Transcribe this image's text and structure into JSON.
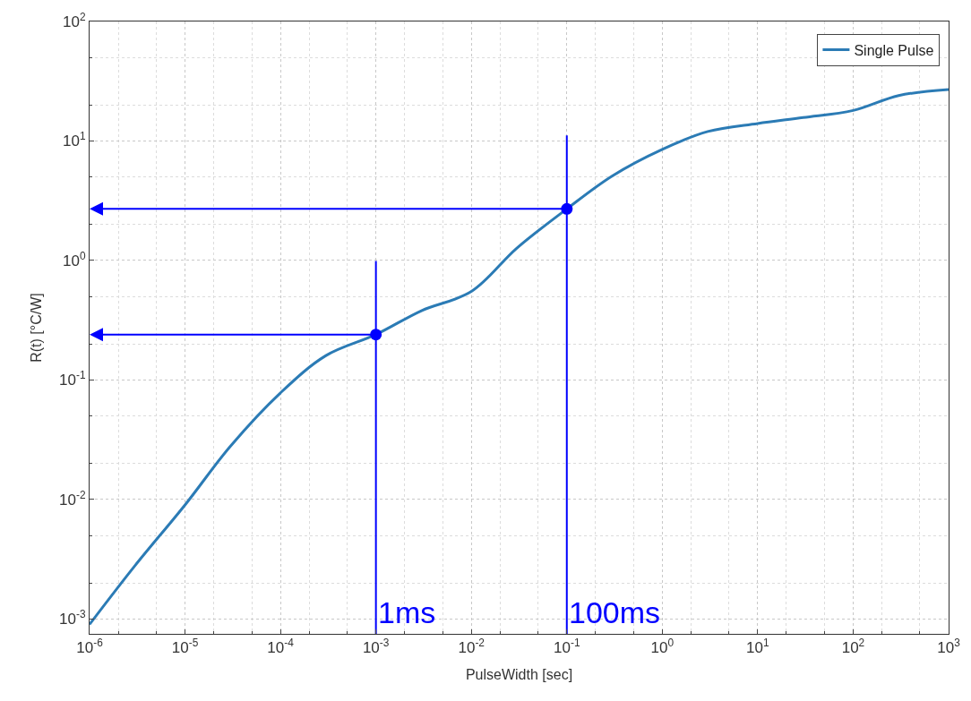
{
  "chart_data": {
    "type": "line",
    "xlabel": "PulseWidth [sec]",
    "ylabel": "R(t) [°C/W]",
    "log": "xy",
    "grid": true,
    "legend": "top right",
    "xlim": [
      1e-06,
      1000
    ],
    "ylim": [
      0.00075,
      100
    ],
    "xticks": [
      {
        "value": 1e-06,
        "label": "10$^{-6}$"
      },
      {
        "value": 1e-05,
        "label": "10$^{-5}$"
      },
      {
        "value": 0.0001,
        "label": "10$^{-4}$"
      },
      {
        "value": 0.001,
        "label": "10$^{-3}$"
      },
      {
        "value": 0.01,
        "label": "10$^{-2}$"
      },
      {
        "value": 0.1,
        "label": "10$^{-1}$"
      },
      {
        "value": 1,
        "label": "10$^{0}$"
      },
      {
        "value": 10,
        "label": "10$^{1}$"
      },
      {
        "value": 100,
        "label": "10$^{2}$"
      },
      {
        "value": 1000,
        "label": "10$^{3}$"
      }
    ],
    "yticks": [
      {
        "value": 0.001,
        "label": "10$^{-3}$"
      },
      {
        "value": 0.01,
        "label": "10$^{-2}$"
      },
      {
        "value": 0.1,
        "label": "10$^{-1}$"
      },
      {
        "value": 1,
        "label": "10$^{0}$"
      },
      {
        "value": 10,
        "label": "10$^{1}$"
      },
      {
        "value": 100,
        "label": "10$^{2}$"
      }
    ],
    "series": [
      {
        "name": "Single Pulse",
        "color": "#2b7bb5",
        "marker": "none",
        "x": [
          1e-06,
          3e-06,
          1e-05,
          3e-05,
          0.0001,
          0.0003,
          0.001,
          0.003,
          0.01,
          0.03,
          0.1,
          0.3,
          1,
          3,
          10,
          30,
          100,
          300,
          1000
        ],
        "values": [
          0.0009,
          0.0028,
          0.009,
          0.028,
          0.078,
          0.16,
          0.24,
          0.38,
          0.55,
          1.27,
          2.7,
          5.1,
          8.5,
          12,
          14,
          15.7,
          18,
          24,
          27
        ]
      },
      {
        "type": "scatter",
        "color": "#0000ff",
        "marker": "circle",
        "x": [
          0.001,
          0.1
        ],
        "values": [
          0.24,
          2.7
        ]
      }
    ],
    "ref_lines": [
      {
        "axis": "x",
        "value": 0.001,
        "label": "1ms",
        "color": "#0000ff"
      },
      {
        "axis": "x",
        "value": 0.1,
        "label": "100ms",
        "color": "#0000ff"
      }
    ]
  }
}
